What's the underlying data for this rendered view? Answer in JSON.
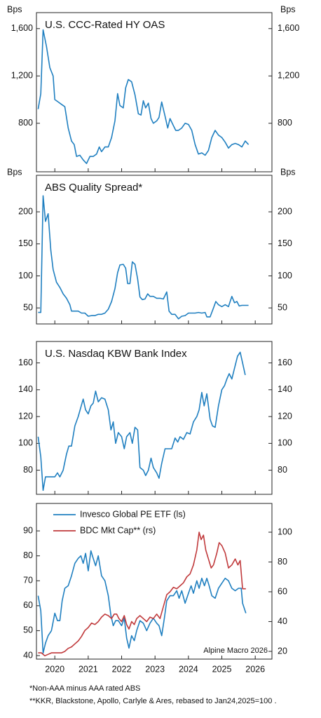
{
  "chart_data": [
    {
      "type": "line",
      "title": "U.S. CCC-Rated HY OAS",
      "ylabel": "Bps",
      "y2label": "Bps",
      "xlim": [
        2019.45,
        2026.5
      ],
      "ylim": [
        390,
        1735
      ],
      "yticks": [
        800,
        {
          "value": 1200,
          "label": "1,200"
        },
        {
          "value": 1600,
          "label": "1,600"
        }
      ],
      "series": [
        {
          "color": "#1f7fc0",
          "x": [
            2019.5,
            2019.58,
            2019.65,
            2019.75,
            2019.85,
            2019.95,
            2020.0,
            2020.1,
            2020.2,
            2020.3,
            2020.4,
            2020.5,
            2020.58,
            2020.65,
            2020.75,
            2020.85,
            2020.95,
            2021.05,
            2021.15,
            2021.25,
            2021.33,
            2021.4,
            2021.5,
            2021.6,
            2021.7,
            2021.8,
            2021.88,
            2021.95,
            2022.05,
            2022.12,
            2022.2,
            2022.3,
            2022.4,
            2022.5,
            2022.58,
            2022.65,
            2022.72,
            2022.8,
            2022.88,
            2022.95,
            2023.05,
            2023.12,
            2023.2,
            2023.3,
            2023.38,
            2023.45,
            2023.55,
            2023.62,
            2023.7,
            2023.8,
            2023.9,
            2024.0,
            2024.1,
            2024.2,
            2024.3,
            2024.4,
            2024.5,
            2024.6,
            2024.7,
            2024.8,
            2024.9,
            2025.0,
            2025.1,
            2025.2,
            2025.3,
            2025.4,
            2025.5,
            2025.6,
            2025.7,
            2025.8
          ],
          "values": [
            920,
            1050,
            1590,
            1450,
            1270,
            1200,
            1000,
            980,
            960,
            940,
            760,
            650,
            620,
            520,
            530,
            490,
            460,
            520,
            520,
            540,
            600,
            560,
            600,
            600,
            680,
            820,
            1050,
            950,
            930,
            1100,
            1170,
            1150,
            1040,
            880,
            870,
            990,
            930,
            970,
            840,
            800,
            820,
            850,
            980,
            860,
            760,
            840,
            780,
            740,
            740,
            760,
            800,
            790,
            740,
            620,
            540,
            550,
            530,
            570,
            680,
            740,
            700,
            680,
            640,
            590,
            620,
            630,
            620,
            600,
            650,
            620
          ]
        }
      ]
    },
    {
      "type": "line",
      "title": "ABS Quality Spread*",
      "ylabel": "Bps",
      "y2label": "Bps",
      "xlim": [
        2019.45,
        2026.5
      ],
      "ylim": [
        25,
        257
      ],
      "yticks": [
        50,
        100,
        150,
        200
      ],
      "series": [
        {
          "color": "#1f7fc0",
          "x": [
            2019.5,
            2019.58,
            2019.65,
            2019.72,
            2019.8,
            2019.88,
            2019.95,
            2020.05,
            2020.15,
            2020.25,
            2020.35,
            2020.45,
            2020.5,
            2020.6,
            2020.7,
            2020.8,
            2020.9,
            2021.0,
            2021.1,
            2021.2,
            2021.3,
            2021.4,
            2021.5,
            2021.6,
            2021.7,
            2021.8,
            2021.88,
            2021.95,
            2022.05,
            2022.12,
            2022.18,
            2022.25,
            2022.32,
            2022.4,
            2022.48,
            2022.55,
            2022.62,
            2022.7,
            2022.78,
            2022.85,
            2022.95,
            2023.05,
            2023.15,
            2023.25,
            2023.35,
            2023.42,
            2023.5,
            2023.6,
            2023.7,
            2023.8,
            2023.9,
            2024.0,
            2024.1,
            2024.2,
            2024.3,
            2024.4,
            2024.5,
            2024.55,
            2024.65,
            2024.75,
            2024.82,
            2024.9,
            2025.0,
            2025.1,
            2025.2,
            2025.3,
            2025.38,
            2025.45,
            2025.52,
            2025.6,
            2025.8
          ],
          "values": [
            43,
            43,
            225,
            185,
            197,
            140,
            110,
            90,
            82,
            72,
            65,
            55,
            45,
            45,
            45,
            42,
            42,
            37,
            38,
            38,
            40,
            40,
            42,
            48,
            60,
            80,
            105,
            117,
            118,
            112,
            88,
            88,
            122,
            118,
            95,
            67,
            63,
            64,
            72,
            68,
            68,
            65,
            65,
            64,
            75,
            45,
            40,
            40,
            33,
            37,
            38,
            42,
            42,
            42,
            43,
            42,
            43,
            36,
            36,
            50,
            60,
            55,
            52,
            55,
            52,
            68,
            58,
            60,
            53,
            54,
            54
          ]
        }
      ]
    },
    {
      "type": "line",
      "title": "U.S. Nasdaq KBW Bank Index",
      "xlim": [
        2019.45,
        2026.5
      ],
      "ylim": [
        62,
        176
      ],
      "yticks": [
        80,
        100,
        120,
        140,
        160
      ],
      "series": [
        {
          "color": "#1f7fc0",
          "x": [
            2019.5,
            2019.58,
            2019.65,
            2019.72,
            2019.8,
            2019.9,
            2020.0,
            2020.08,
            2020.15,
            2020.25,
            2020.35,
            2020.42,
            2020.5,
            2020.6,
            2020.7,
            2020.78,
            2020.85,
            2020.92,
            2021.0,
            2021.08,
            2021.15,
            2021.22,
            2021.3,
            2021.4,
            2021.5,
            2021.6,
            2021.68,
            2021.75,
            2021.82,
            2021.9,
            2022.0,
            2022.08,
            2022.15,
            2022.25,
            2022.32,
            2022.4,
            2022.48,
            2022.55,
            2022.65,
            2022.72,
            2022.8,
            2022.88,
            2022.95,
            2023.05,
            2023.12,
            2023.2,
            2023.3,
            2023.4,
            2023.5,
            2023.6,
            2023.68,
            2023.75,
            2023.85,
            2023.95,
            2024.05,
            2024.15,
            2024.25,
            2024.32,
            2024.4,
            2024.47,
            2024.55,
            2024.65,
            2024.72,
            2024.8,
            2024.9,
            2025.0,
            2025.08,
            2025.15,
            2025.22,
            2025.3,
            2025.38,
            2025.47,
            2025.55,
            2025.62,
            2025.7
          ],
          "values": [
            105,
            90,
            65,
            75,
            75,
            75,
            75,
            78,
            75,
            80,
            92,
            98,
            98,
            113,
            120,
            127,
            133,
            125,
            122,
            128,
            130,
            139,
            131,
            134,
            133,
            125,
            110,
            116,
            100,
            108,
            105,
            96,
            105,
            108,
            100,
            112,
            110,
            82,
            80,
            76,
            80,
            89,
            82,
            78,
            74,
            85,
            96,
            96,
            96,
            104,
            101,
            105,
            103,
            108,
            107,
            116,
            120,
            125,
            138,
            128,
            137,
            118,
            113,
            112,
            128,
            140,
            143,
            148,
            152,
            148,
            156,
            165,
            168,
            160,
            151
          ]
        }
      ]
    },
    {
      "type": "line",
      "source": "Alpine Macro 2026",
      "xlim": [
        2019.45,
        2026.5
      ],
      "xticks": [
        2020,
        2021,
        2022,
        2023,
        2024,
        2025,
        2026
      ],
      "ylim": [
        38.6,
        101
      ],
      "yticks": [
        40,
        50,
        60,
        70,
        80,
        90
      ],
      "y2lim": [
        14.8,
        119.3
      ],
      "y2ticks": [
        20,
        40,
        60,
        80,
        100
      ],
      "series": [
        {
          "name": "Invesco Global PE ETF (ls)",
          "color": "#1f7fc0",
          "x": [
            2019.5,
            2019.58,
            2019.65,
            2019.72,
            2019.8,
            2019.9,
            2020.0,
            2020.08,
            2020.15,
            2020.22,
            2020.3,
            2020.4,
            2020.5,
            2020.6,
            2020.7,
            2020.78,
            2020.85,
            2020.92,
            2021.0,
            2021.08,
            2021.15,
            2021.22,
            2021.3,
            2021.4,
            2021.5,
            2021.6,
            2021.68,
            2021.75,
            2021.82,
            2021.9,
            2022.0,
            2022.08,
            2022.15,
            2022.22,
            2022.3,
            2022.38,
            2022.45,
            2022.55,
            2022.65,
            2022.75,
            2022.85,
            2022.95,
            2023.05,
            2023.12,
            2023.2,
            2023.28,
            2023.35,
            2023.45,
            2023.55,
            2023.65,
            2023.72,
            2023.8,
            2023.9,
            2024.0,
            2024.08,
            2024.15,
            2024.25,
            2024.32,
            2024.4,
            2024.48,
            2024.55,
            2024.62,
            2024.7,
            2024.8,
            2024.9,
            2025.0,
            2025.1,
            2025.2,
            2025.3,
            2025.4,
            2025.5,
            2025.58,
            2025.62,
            2025.72
          ],
          "values": [
            64,
            58,
            41,
            45,
            48,
            50,
            57,
            54,
            54,
            62,
            67,
            68,
            72,
            77,
            79,
            80,
            77,
            81,
            74,
            82,
            79,
            76,
            80,
            72,
            70,
            64,
            56,
            52,
            54,
            54,
            52,
            55,
            47,
            43,
            48,
            46,
            50,
            54,
            53,
            50,
            53,
            55,
            53,
            52,
            48,
            55,
            62,
            64,
            64,
            66,
            63,
            66,
            61,
            65,
            68,
            65,
            70,
            67,
            71,
            68,
            71,
            68,
            64,
            63,
            67,
            69,
            71,
            70,
            67,
            66,
            67,
            67,
            61,
            57
          ]
        },
        {
          "name": "BDC Mkt Cap** (rs)",
          "color": "#c0393b",
          "axis": "y2",
          "x": [
            2019.5,
            2019.6,
            2019.7,
            2019.8,
            2019.9,
            2020.0,
            2020.1,
            2020.2,
            2020.3,
            2020.4,
            2020.5,
            2020.6,
            2020.7,
            2020.8,
            2020.9,
            2021.0,
            2021.1,
            2021.2,
            2021.3,
            2021.4,
            2021.5,
            2021.6,
            2021.7,
            2021.78,
            2021.85,
            2021.92,
            2022.0,
            2022.08,
            2022.15,
            2022.22,
            2022.3,
            2022.38,
            2022.45,
            2022.55,
            2022.65,
            2022.75,
            2022.85,
            2022.95,
            2023.05,
            2023.15,
            2023.25,
            2023.35,
            2023.45,
            2023.55,
            2023.65,
            2023.75,
            2023.85,
            2023.95,
            2024.05,
            2024.15,
            2024.25,
            2024.32,
            2024.38,
            2024.45,
            2024.52,
            2024.6,
            2024.68,
            2024.75,
            2024.85,
            2024.92,
            2025.0,
            2025.1,
            2025.2,
            2025.3,
            2025.4,
            2025.48,
            2025.55,
            2025.62,
            2025.72
          ],
          "values": [
            19,
            19,
            17,
            18,
            19,
            19,
            19,
            19,
            20,
            22,
            23,
            25,
            27,
            30,
            34,
            36,
            39,
            38,
            40,
            43,
            45,
            44,
            42,
            45,
            45,
            42,
            40,
            44,
            38,
            35,
            40,
            38,
            42,
            44,
            42,
            40,
            43,
            42,
            45,
            42,
            50,
            58,
            60,
            63,
            62,
            64,
            66,
            70,
            72,
            78,
            88,
            100,
            95,
            98,
            88,
            82,
            76,
            78,
            86,
            93,
            91,
            86,
            76,
            78,
            82,
            78,
            81,
            62,
            62
          ]
        }
      ]
    }
  ],
  "footnotes": [
    "*Non-AAA minus AAA rated ABS",
    "**KKR, Blackstone, Apollo, Carlyle & Ares, rebased to Jan24,2025=100 ."
  ]
}
